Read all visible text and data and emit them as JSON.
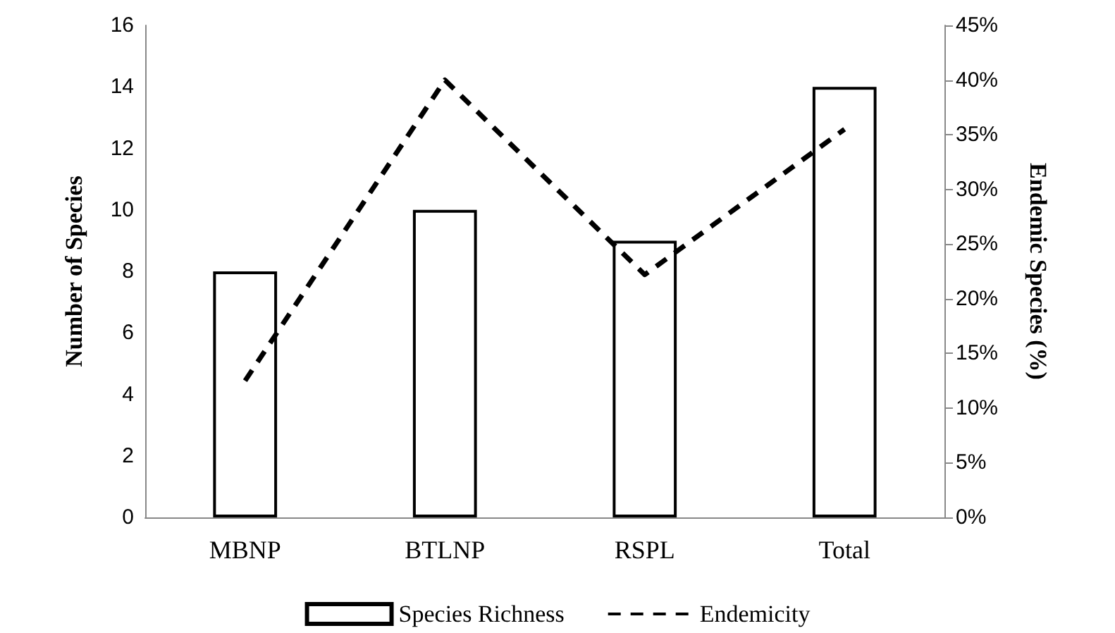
{
  "chart_data": {
    "type": "bar",
    "categories": [
      "MBNP",
      "BTLNP",
      "RSPL",
      "Total"
    ],
    "series": [
      {
        "name": "Species Richness",
        "color": "#000000",
        "values": [
          8,
          10,
          9,
          14
        ]
      },
      {
        "name": "Endemicity",
        "type": "line",
        "axis": "y2",
        "color": "#000000",
        "line_style": "dashed",
        "marker": "none",
        "values": [
          12.5,
          40,
          22.2,
          35.5
        ]
      }
    ],
    "ylabel": "Number of Species",
    "y2label": "Endemic Species (%)",
    "ylim": [
      0,
      16
    ],
    "yticks": [
      0,
      2,
      4,
      6,
      8,
      10,
      12,
      14,
      16
    ],
    "y2lim": [
      0,
      45
    ],
    "y2ticks": [
      {
        "value": 0,
        "label": "0%"
      },
      {
        "value": 5,
        "label": "5%"
      },
      {
        "value": 10,
        "label": "10%"
      },
      {
        "value": 15,
        "label": "15%"
      },
      {
        "value": 20,
        "label": "20%"
      },
      {
        "value": 25,
        "label": "25%"
      },
      {
        "value": 30,
        "label": "30%"
      },
      {
        "value": 35,
        "label": "35%"
      },
      {
        "value": 40,
        "label": "40%"
      },
      {
        "value": 45,
        "label": "45%"
      }
    ],
    "grid": false,
    "legend": "bottom"
  }
}
